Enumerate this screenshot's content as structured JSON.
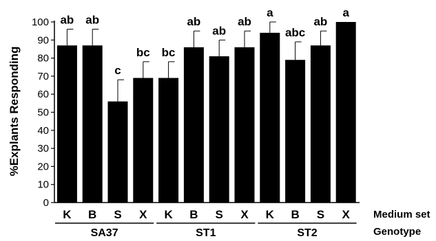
{
  "chart_data": {
    "type": "bar",
    "ylabel": "%Explants Responding",
    "ylim": [
      0,
      100
    ],
    "yticks": [
      0,
      10,
      20,
      30,
      40,
      50,
      60,
      70,
      80,
      90,
      100
    ],
    "grid": false,
    "categories": [
      "K",
      "B",
      "S",
      "X",
      "K",
      "B",
      "S",
      "X",
      "K",
      "B",
      "S",
      "X"
    ],
    "values": [
      87,
      87,
      56,
      69,
      69,
      86,
      81,
      86,
      94,
      79,
      87,
      100
    ],
    "errors": [
      9,
      9,
      12,
      9,
      9,
      9,
      9,
      9,
      6,
      10,
      8,
      0
    ],
    "significance_letters": [
      "ab",
      "ab",
      "c",
      "bc",
      "bc",
      "ab",
      "ab",
      "ab",
      "a",
      "abc",
      "ab",
      "a"
    ],
    "groups": [
      {
        "name": "SA37",
        "categories": [
          "K",
          "B",
          "S",
          "X"
        ]
      },
      {
        "name": "ST1",
        "categories": [
          "K",
          "B",
          "S",
          "X"
        ]
      },
      {
        "name": "ST2",
        "categories": [
          "K",
          "B",
          "S",
          "X"
        ]
      }
    ],
    "category_axis_label": "Medium set",
    "group_axis_label": "Genotype",
    "bar_color": "#000000"
  }
}
